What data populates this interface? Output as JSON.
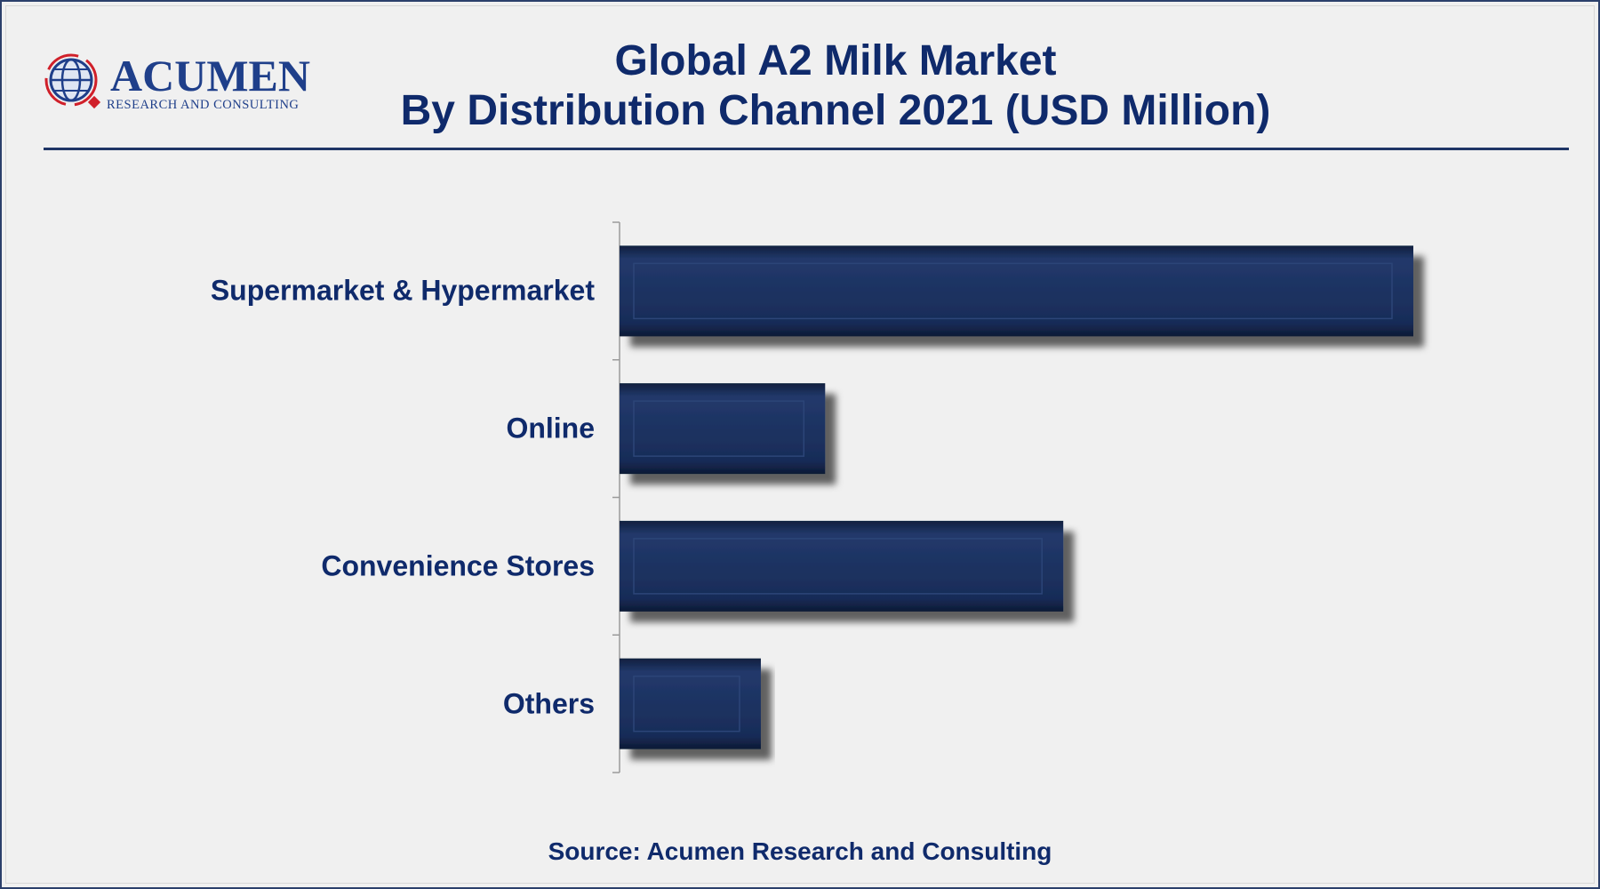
{
  "logo": {
    "name": "ACUMEN",
    "tagline": "RESEARCH AND CONSULTING"
  },
  "title_line1": "Global A2 Milk Market",
  "title_line2": "By Distribution Channel 2021 (USD Million)",
  "source": "Source: Acumen Research and Consulting",
  "colors": {
    "bar": "#1b3160",
    "text": "#0f2a6b",
    "background": "#f0f0f0"
  },
  "chart_data": {
    "type": "bar",
    "orientation": "horizontal",
    "title": "Global A2 Milk Market By Distribution Channel 2021 (USD Million)",
    "categories": [
      "Supermarket & Hypermarket",
      "Online",
      "Convenience Stores",
      "Others"
    ],
    "values": [
      100,
      25.9,
      55.9,
      17.8
    ],
    "xlabel": "",
    "ylabel": "",
    "grid": false,
    "legend": "none"
  }
}
